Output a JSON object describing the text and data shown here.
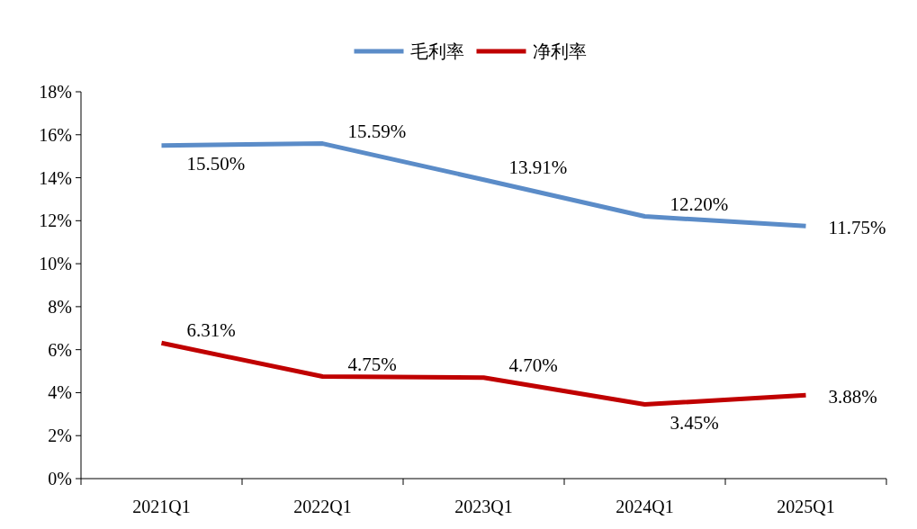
{
  "chart_data": {
    "type": "line",
    "categories": [
      "2021Q1",
      "2022Q1",
      "2023Q1",
      "2024Q1",
      "2025Q1"
    ],
    "series": [
      {
        "name": "毛利率",
        "color": "#5b8cc8",
        "values": [
          15.5,
          15.59,
          13.91,
          12.2,
          11.75
        ],
        "value_labels": [
          "15.50%",
          "15.59%",
          "13.91%",
          "12.20%",
          "11.75%"
        ]
      },
      {
        "name": "净利率",
        "color": "#c00000",
        "values": [
          6.31,
          4.75,
          4.7,
          3.45,
          3.88
        ],
        "value_labels": [
          "6.31%",
          "4.75%",
          "4.70%",
          "3.45%",
          "3.88%"
        ]
      }
    ],
    "ylim": [
      0,
      18
    ],
    "yticks": [
      {
        "value": 0,
        "label": "0%"
      },
      {
        "value": 2,
        "label": "2%"
      },
      {
        "value": 4,
        "label": "4%"
      },
      {
        "value": 6,
        "label": "6%"
      },
      {
        "value": 8,
        "label": "8%"
      },
      {
        "value": 10,
        "label": "10%"
      },
      {
        "value": 12,
        "label": "12%"
      },
      {
        "value": 14,
        "label": "14%"
      },
      {
        "value": 16,
        "label": "16%"
      },
      {
        "value": 18,
        "label": "18%"
      }
    ],
    "grid": false,
    "legend": "top",
    "line_style": "solid"
  }
}
